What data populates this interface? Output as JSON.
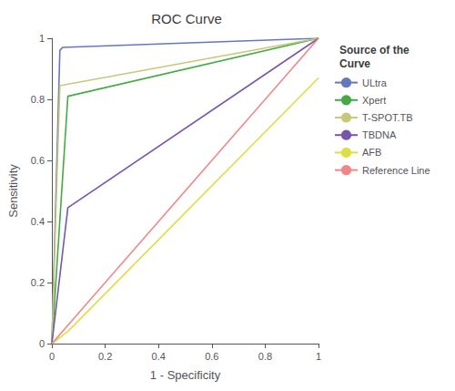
{
  "chart_data": {
    "type": "line",
    "title": "ROC Curve",
    "xlabel": "1 - Specificity",
    "ylabel": "Sensitivity",
    "legend_title": "Source of the\nCurve",
    "legend": "right",
    "grid": false,
    "series": [
      {
        "name": "ULtra",
        "color": "#6677bb",
        "x": [
          0.0,
          0.0,
          0.03,
          0.04,
          1.0
        ],
        "values": [
          0.0,
          0.0,
          0.96,
          0.97,
          1.0
        ]
      },
      {
        "name": "Xpert",
        "color": "#44aa44",
        "x": [
          0.0,
          0.06,
          1.0
        ],
        "values": [
          0.0,
          0.81,
          1.0
        ]
      },
      {
        "name": "T-SPOT.TB",
        "color": "#c8c87a",
        "x": [
          0.0,
          0.03,
          1.0
        ],
        "values": [
          0.0,
          0.845,
          1.0
        ]
      },
      {
        "name": "TBDNA",
        "color": "#7755aa",
        "x": [
          0.0,
          0.06,
          1.0
        ],
        "values": [
          0.0,
          0.445,
          1.0
        ]
      },
      {
        "name": "AFB",
        "color": "#dddd44",
        "x": [
          0.0,
          0.06,
          1.0
        ],
        "values": [
          0.0,
          0.04,
          0.87
        ]
      },
      {
        "name": "Reference Line",
        "color": "#ee8888",
        "x": [
          0.0,
          1.0
        ],
        "values": [
          0.0,
          1.0
        ]
      }
    ],
    "xlim": [
      0,
      1
    ],
    "ylim": [
      0,
      1
    ],
    "xticks": [
      0,
      0.2,
      0.4,
      0.6,
      0.8,
      1
    ],
    "yticks": [
      0,
      0.2,
      0.4,
      0.6,
      0.8,
      1
    ]
  }
}
